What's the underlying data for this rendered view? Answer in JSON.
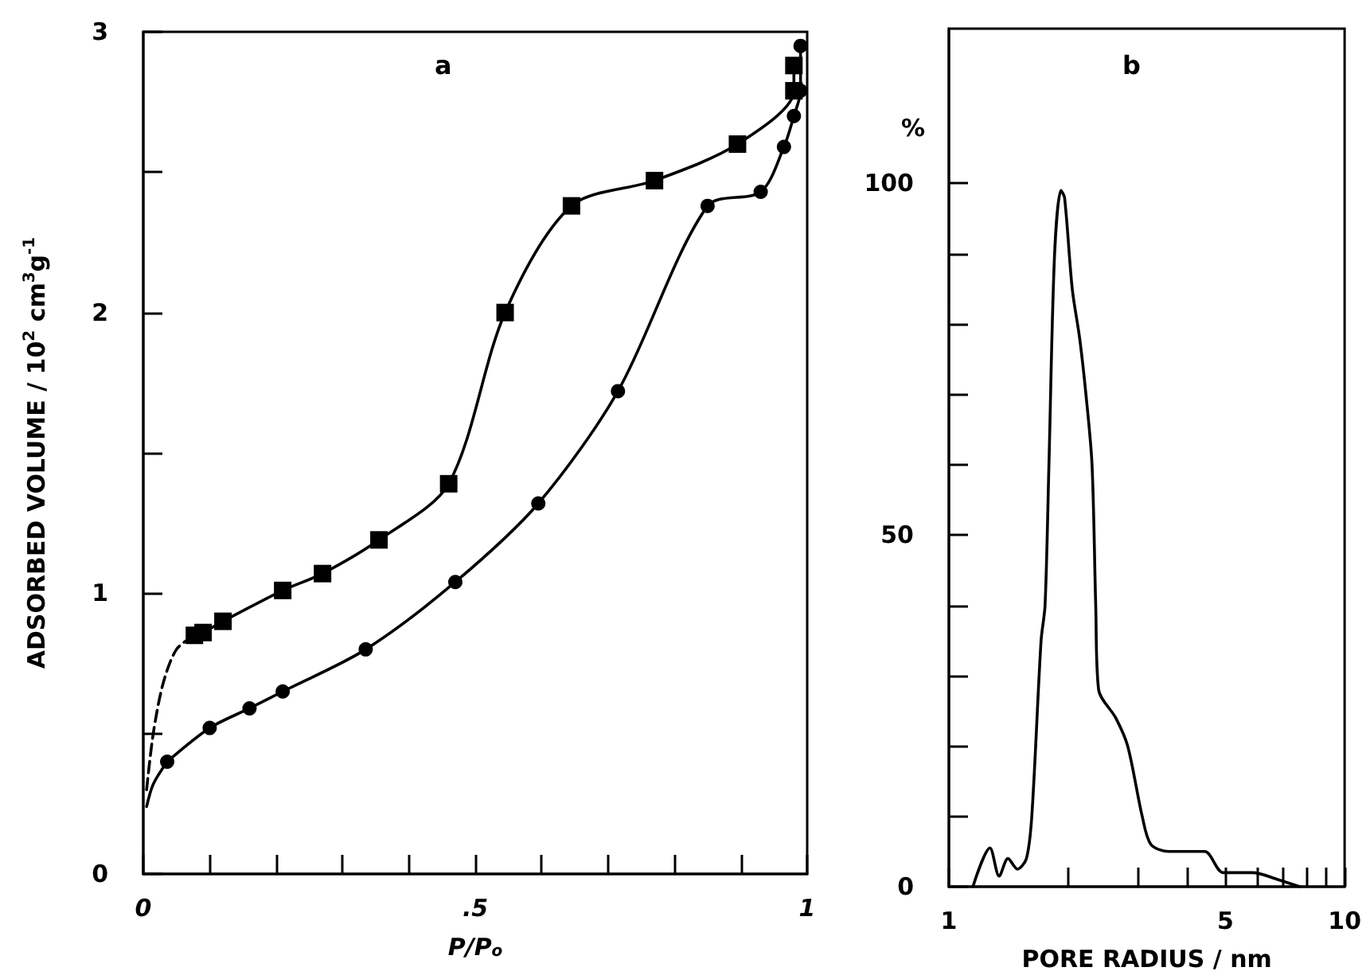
{
  "chart_data": [
    {
      "type": "line",
      "title": "a",
      "xlabel": "P/P$_{o}$",
      "ylabel": "ADSORBED VOLUME / 10$^{2}$ cm$^{3}$g$^{-1}$",
      "xlim": [
        0,
        1
      ],
      "xticks": [
        0,
        {
          "value": 0.1,
          "label": null
        },
        {
          "value": 0.2,
          "label": null
        },
        {
          "value": 0.3,
          "label": null
        },
        {
          "value": 0.4,
          "label": null
        },
        {
          "value": 0.5,
          "label": ".5"
        },
        {
          "value": 0.6,
          "label": null
        },
        {
          "value": 0.7,
          "label": null
        },
        {
          "value": 0.8,
          "label": null
        },
        {
          "value": 0.9,
          "label": null
        },
        1
      ],
      "ylim": [
        0,
        3
      ],
      "yticks": [
        0,
        {
          "value": 0.5,
          "label": null
        },
        1,
        {
          "value": 1.5,
          "label": null
        },
        2,
        {
          "value": 2.5,
          "label": null
        },
        3
      ],
      "grid": false,
      "series": [
        {
          "color": "#000000",
          "marker": "square",
          "line_style": "solid",
          "x": [
            0.077,
            0.09,
            0.12,
            0.21,
            0.27,
            0.355,
            0.46,
            0.545,
            0.645,
            0.77,
            0.895,
            0.98,
            0.98
          ],
          "values": [
            0.85,
            0.86,
            0.9,
            1.01,
            1.07,
            1.19,
            1.39,
            2.0,
            2.38,
            2.47,
            2.6,
            2.79,
            2.88
          ]
        },
        {
          "color": "#000000",
          "marker": "none",
          "line_style": "dashed",
          "x": [
            0.005,
            0.015,
            0.03,
            0.05,
            0.077
          ],
          "values": [
            0.3,
            0.5,
            0.68,
            0.8,
            0.85
          ]
        },
        {
          "color": "#000000",
          "marker": "circle",
          "line_style": "solid",
          "x": [
            0.036,
            0.1,
            0.16,
            0.21,
            0.335,
            0.47,
            0.595,
            0.715,
            0.85,
            0.93,
            0.965,
            0.98,
            0.99,
            0.99
          ],
          "values": [
            0.4,
            0.52,
            0.59,
            0.65,
            0.8,
            1.04,
            1.32,
            1.72,
            2.38,
            2.43,
            2.59,
            2.7,
            2.79,
            2.95
          ]
        },
        {
          "color": "#000000",
          "marker": "none",
          "line_style": "solid",
          "x": [
            0.005,
            0.015,
            0.036
          ],
          "values": [
            0.24,
            0.32,
            0.4
          ]
        }
      ]
    },
    {
      "type": "line",
      "title": "b",
      "xlabel": "PORE RADIUS / nm",
      "ylabel": "%",
      "log": "x",
      "xlim": [
        1,
        10
      ],
      "xticks": [
        1,
        {
          "value": 2,
          "label": null
        },
        {
          "value": 3,
          "label": null
        },
        {
          "value": 4,
          "label": null
        },
        5,
        {
          "value": 6,
          "label": null
        },
        {
          "value": 7,
          "label": null
        },
        {
          "value": 8,
          "label": null
        },
        {
          "value": 9,
          "label": null
        },
        10
      ],
      "ylim": [
        0,
        122
      ],
      "yticks": [
        0,
        {
          "value": 10,
          "label": null
        },
        {
          "value": 20,
          "label": null
        },
        {
          "value": 30,
          "label": null
        },
        {
          "value": 40,
          "label": null
        },
        50,
        {
          "value": 60,
          "label": null
        },
        {
          "value": 70,
          "label": null
        },
        {
          "value": 80,
          "label": null
        },
        {
          "value": 90,
          "label": null
        },
        100
      ],
      "grid": false,
      "series": [
        {
          "color": "#000000",
          "marker": "none",
          "line_style": "solid",
          "x": [
            1.15,
            1.27,
            1.34,
            1.41,
            1.49,
            1.57,
            1.62,
            1.71,
            1.75,
            1.79,
            1.85,
            1.92,
            1.96,
            2.05,
            2.14,
            2.22,
            2.3,
            2.35,
            2.39,
            2.64,
            2.83,
            3.08,
            3.24,
            3.6,
            4.43,
            4.93,
            5.85,
            6.8,
            7.7
          ],
          "values": [
            0,
            5.5,
            1.5,
            4,
            2.5,
            4,
            10,
            35,
            40,
            60,
            90,
            99,
            98,
            85,
            78,
            70,
            60,
            40,
            28,
            24,
            20,
            10,
            6,
            5,
            5,
            2,
            2,
            1,
            0
          ]
        }
      ]
    }
  ]
}
